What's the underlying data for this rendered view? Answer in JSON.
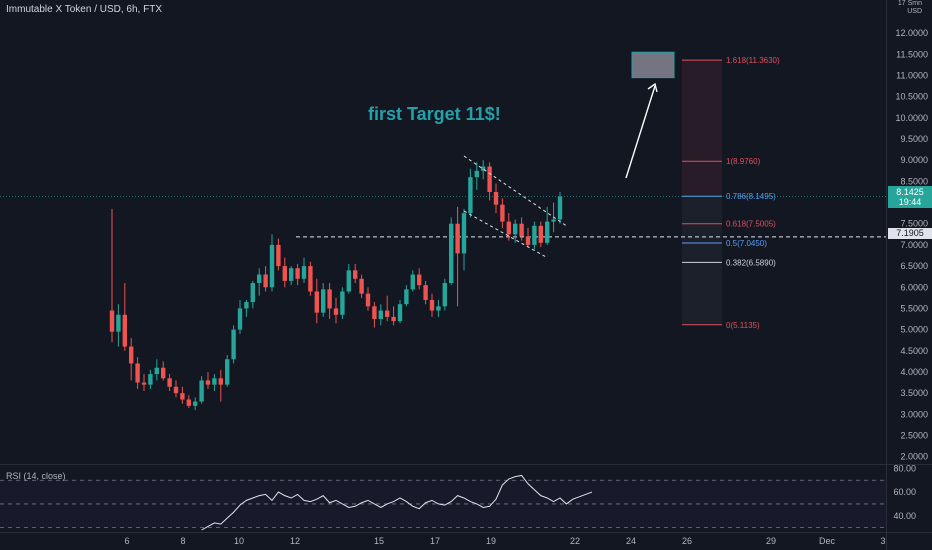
{
  "header": {
    "title": "Immutable X Token / USD, 6h, FTX"
  },
  "annotation": {
    "text": "first Target 11$!"
  },
  "axis": {
    "unit_line1": "17 Smn",
    "unit_line2": "USD"
  },
  "tags": {
    "current_price": "8.1425",
    "countdown": "19:44",
    "dashed_level": "7.1905"
  },
  "rsi": {
    "label": "RSI (14, close)",
    "ticks": [
      "80.00",
      "60.00",
      "40.00"
    ]
  },
  "colors": {
    "bg": "#131722",
    "up": "#26a69a",
    "down": "#ef5350",
    "fib_red": "#e04f5f",
    "fib_blue": "#5b9cf6",
    "accent": "#26a0a8"
  },
  "chart_data": {
    "type": "candlestick",
    "title": "Immutable X Token / USD, 6h, FTX",
    "y_ticks": [
      2.0,
      2.5,
      3.0,
      3.5,
      4.0,
      4.5,
      5.0,
      5.5,
      6.0,
      6.5,
      7.0,
      7.5,
      8.0,
      8.5,
      9.0,
      9.5,
      10.0,
      10.5,
      11.0,
      11.5,
      12.0
    ],
    "y_tick_labels": [
      "2.0000",
      "2.5000",
      "3.0000",
      "3.5000",
      "4.0000",
      "4.5000",
      "5.0000",
      "5.5000",
      "6.0000",
      "6.5000",
      "7.0000",
      "7.5000",
      "8.0000",
      "8.5000",
      "9.0000",
      "9.5000",
      "10.0000",
      "10.5000",
      "11.0000",
      "11.5000",
      "12.0000"
    ],
    "ylim": [
      1.85,
      12.5
    ],
    "x_tick_labels": [
      "6",
      "8",
      "10",
      "12",
      "15",
      "17",
      "19",
      "22",
      "24",
      "26",
      "29",
      "Dec",
      "3"
    ],
    "ohlc": [
      [
        5.45,
        7.85,
        4.7,
        4.95
      ],
      [
        4.95,
        5.6,
        4.6,
        5.35
      ],
      [
        5.35,
        6.1,
        4.5,
        4.6
      ],
      [
        4.6,
        4.8,
        3.8,
        4.2
      ],
      [
        4.2,
        4.35,
        3.6,
        3.75
      ],
      [
        3.75,
        3.95,
        3.55,
        3.7
      ],
      [
        3.7,
        4.05,
        3.6,
        3.95
      ],
      [
        3.95,
        4.3,
        3.8,
        4.1
      ],
      [
        4.1,
        4.25,
        3.8,
        3.85
      ],
      [
        3.85,
        3.95,
        3.55,
        3.65
      ],
      [
        3.65,
        3.8,
        3.4,
        3.5
      ],
      [
        3.5,
        3.65,
        3.25,
        3.35
      ],
      [
        3.35,
        3.45,
        3.15,
        3.2
      ],
      [
        3.2,
        3.4,
        3.1,
        3.3
      ],
      [
        3.3,
        3.9,
        3.25,
        3.8
      ],
      [
        3.8,
        4.0,
        3.6,
        3.7
      ],
      [
        3.7,
        3.95,
        3.55,
        3.85
      ],
      [
        3.85,
        4.05,
        3.3,
        3.7
      ],
      [
        3.7,
        4.4,
        3.65,
        4.3
      ],
      [
        4.3,
        5.1,
        4.2,
        5.0
      ],
      [
        5.0,
        5.7,
        4.9,
        5.5
      ],
      [
        5.5,
        5.7,
        5.3,
        5.65
      ],
      [
        5.65,
        6.15,
        5.5,
        6.1
      ],
      [
        6.1,
        6.45,
        5.8,
        6.3
      ],
      [
        6.3,
        6.5,
        5.9,
        6.0
      ],
      [
        6.0,
        7.25,
        5.9,
        7.0
      ],
      [
        7.0,
        7.15,
        6.4,
        6.5
      ],
      [
        6.5,
        6.7,
        6.0,
        6.15
      ],
      [
        6.15,
        6.5,
        6.05,
        6.45
      ],
      [
        6.45,
        6.55,
        6.05,
        6.2
      ],
      [
        6.2,
        6.7,
        6.1,
        6.5
      ],
      [
        6.5,
        6.6,
        5.8,
        5.9
      ],
      [
        5.9,
        6.2,
        5.15,
        5.4
      ],
      [
        5.4,
        6.1,
        5.3,
        5.95
      ],
      [
        5.95,
        6.1,
        5.25,
        5.5
      ],
      [
        5.5,
        5.75,
        5.15,
        5.35
      ],
      [
        5.35,
        6.0,
        5.25,
        5.9
      ],
      [
        5.9,
        6.55,
        5.85,
        6.4
      ],
      [
        6.4,
        6.55,
        6.1,
        6.2
      ],
      [
        6.2,
        6.3,
        5.75,
        5.85
      ],
      [
        5.85,
        6.0,
        5.45,
        5.55
      ],
      [
        5.55,
        5.65,
        5.05,
        5.25
      ],
      [
        5.25,
        5.6,
        5.1,
        5.45
      ],
      [
        5.45,
        5.8,
        5.2,
        5.3
      ],
      [
        5.3,
        5.55,
        5.1,
        5.2
      ],
      [
        5.2,
        5.7,
        5.15,
        5.6
      ],
      [
        5.6,
        6.05,
        5.55,
        5.95
      ],
      [
        5.95,
        6.4,
        5.9,
        6.3
      ],
      [
        6.3,
        6.45,
        5.95,
        6.05
      ],
      [
        6.05,
        6.15,
        5.6,
        5.7
      ],
      [
        5.7,
        5.85,
        5.3,
        5.45
      ],
      [
        5.45,
        5.7,
        5.3,
        5.55
      ],
      [
        5.55,
        6.2,
        5.45,
        6.1
      ],
      [
        6.1,
        7.65,
        6.05,
        7.5
      ],
      [
        7.5,
        7.9,
        5.55,
        6.8
      ],
      [
        6.8,
        7.85,
        6.4,
        7.75
      ],
      [
        7.75,
        8.8,
        7.65,
        8.6
      ],
      [
        8.6,
        8.95,
        8.3,
        8.75
      ],
      [
        8.75,
        9.0,
        8.55,
        8.85
      ],
      [
        8.85,
        8.95,
        8.05,
        8.25
      ],
      [
        8.25,
        8.45,
        7.75,
        7.95
      ],
      [
        7.95,
        8.1,
        7.4,
        7.55
      ],
      [
        7.55,
        7.75,
        7.1,
        7.25
      ],
      [
        7.25,
        7.6,
        7.05,
        7.5
      ],
      [
        7.5,
        7.65,
        7.1,
        7.2
      ],
      [
        7.2,
        7.4,
        6.95,
        7.0
      ],
      [
        7.0,
        7.55,
        6.9,
        7.45
      ],
      [
        7.45,
        7.55,
        6.95,
        7.05
      ],
      [
        7.05,
        7.9,
        7.0,
        7.55
      ],
      [
        7.55,
        8.0,
        7.3,
        7.6
      ],
      [
        7.6,
        8.25,
        7.5,
        8.1425
      ]
    ],
    "fib_levels": [
      {
        "ratio": "1.618",
        "price": 11.363,
        "label": "1.618(11.3630)"
      },
      {
        "ratio": "1",
        "price": 8.976,
        "label": "1(8.9760)"
      },
      {
        "ratio": "0.786",
        "price": 8.1495,
        "label": "0.786(8.1495)"
      },
      {
        "ratio": "0.618",
        "price": 7.5005,
        "label": "0.618(7.5005)"
      },
      {
        "ratio": "0.5",
        "price": 7.045,
        "label": "0.5(7.0450)"
      },
      {
        "ratio": "0.382",
        "price": 6.589,
        "label": "0.382(6.5890)"
      },
      {
        "ratio": "0",
        "price": 5.1135,
        "label": "0(5.1135)"
      }
    ],
    "dashed_level": 7.1905,
    "current_price": 8.1425,
    "target_zone": {
      "low": 10.95,
      "high": 11.55
    },
    "rsi_series": [
      28,
      31,
      34,
      33,
      38,
      43,
      49,
      53,
      55,
      57,
      58,
      53,
      60,
      57,
      55,
      58,
      53,
      52,
      54,
      57,
      51,
      53,
      50,
      47,
      48,
      51,
      53,
      50,
      47,
      50,
      52,
      55,
      52,
      48,
      46,
      51,
      53,
      50,
      49,
      52,
      57,
      55,
      52,
      50,
      47,
      48,
      54,
      66,
      71,
      73,
      74,
      67,
      62,
      57,
      55,
      52,
      55,
      50,
      54,
      56,
      58,
      60
    ],
    "rsi_ticks": [
      80,
      60,
      40
    ],
    "rsi_range": [
      28,
      82
    ]
  }
}
